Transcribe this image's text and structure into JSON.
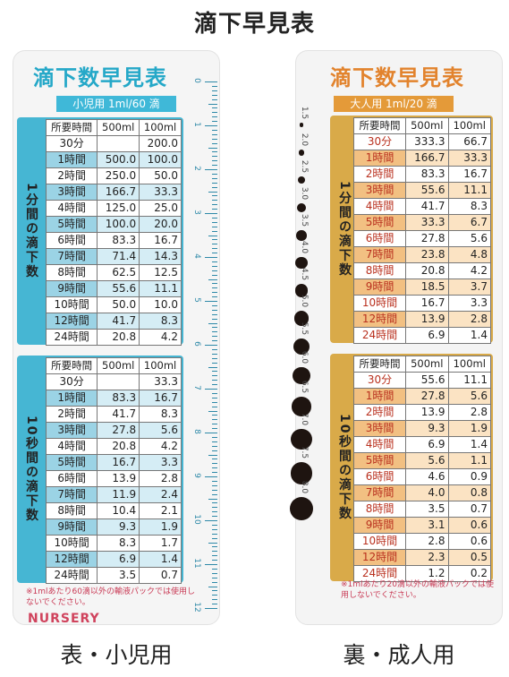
{
  "page_title": "滴下早見表",
  "captions": {
    "front": "表・小児用",
    "back": "裏・成人用"
  },
  "front": {
    "heading": "滴下数早見表",
    "subtitle": "小児用 1ml/60 滴",
    "header": [
      "所要時間",
      "500ml",
      "100ml"
    ],
    "section1_label": "1分間の滴下数",
    "section1_rows": [
      [
        "30分",
        "",
        "200.0"
      ],
      [
        "1時間",
        "500.0",
        "100.0"
      ],
      [
        "2時間",
        "250.0",
        "50.0"
      ],
      [
        "3時間",
        "166.7",
        "33.3"
      ],
      [
        "4時間",
        "125.0",
        "25.0"
      ],
      [
        "5時間",
        "100.0",
        "20.0"
      ],
      [
        "6時間",
        "83.3",
        "16.7"
      ],
      [
        "7時間",
        "71.4",
        "14.3"
      ],
      [
        "8時間",
        "62.5",
        "12.5"
      ],
      [
        "9時間",
        "55.6",
        "11.1"
      ],
      [
        "10時間",
        "50.0",
        "10.0"
      ],
      [
        "12時間",
        "41.7",
        "8.3"
      ],
      [
        "24時間",
        "20.8",
        "4.2"
      ]
    ],
    "section2_label": "10秒間の滴下数",
    "section2_rows": [
      [
        "30分",
        "",
        "33.3"
      ],
      [
        "1時間",
        "83.3",
        "16.7"
      ],
      [
        "2時間",
        "41.7",
        "8.3"
      ],
      [
        "3時間",
        "27.8",
        "5.6"
      ],
      [
        "4時間",
        "20.8",
        "4.2"
      ],
      [
        "5時間",
        "16.7",
        "3.3"
      ],
      [
        "6時間",
        "13.9",
        "2.8"
      ],
      [
        "7時間",
        "11.9",
        "2.4"
      ],
      [
        "8時間",
        "10.4",
        "2.1"
      ],
      [
        "9時間",
        "9.3",
        "1.9"
      ],
      [
        "10時間",
        "8.3",
        "1.7"
      ],
      [
        "12時間",
        "6.9",
        "1.4"
      ],
      [
        "24時間",
        "3.5",
        "0.7"
      ]
    ],
    "note": "※1mlあたり60滴以外の輸液パックでは使用しないでください。",
    "brand": "NURSERY",
    "ruler_numbers": [
      "0",
      "1",
      "2",
      "3",
      "4",
      "5",
      "6",
      "7",
      "8",
      "9",
      "10",
      "11",
      "12"
    ]
  },
  "back": {
    "heading": "滴下数早見表",
    "subtitle": "大人用 1ml/20 滴",
    "header": [
      "所要時間",
      "500ml",
      "100ml"
    ],
    "section1_label": "1分間の滴下数",
    "section1_rows": [
      [
        "30分",
        "333.3",
        "66.7"
      ],
      [
        "1時間",
        "166.7",
        "33.3"
      ],
      [
        "2時間",
        "83.3",
        "16.7"
      ],
      [
        "3時間",
        "55.6",
        "11.1"
      ],
      [
        "4時間",
        "41.7",
        "8.3"
      ],
      [
        "5時間",
        "33.3",
        "6.7"
      ],
      [
        "6時間",
        "27.8",
        "5.6"
      ],
      [
        "7時間",
        "23.8",
        "4.8"
      ],
      [
        "8時間",
        "20.8",
        "4.2"
      ],
      [
        "9時間",
        "18.5",
        "3.7"
      ],
      [
        "10時間",
        "16.7",
        "3.3"
      ],
      [
        "12時間",
        "13.9",
        "2.8"
      ],
      [
        "24時間",
        "6.9",
        "1.4"
      ]
    ],
    "section2_label": "10秒間の滴下数",
    "section2_rows": [
      [
        "30分",
        "55.6",
        "11.1"
      ],
      [
        "1時間",
        "27.8",
        "5.6"
      ],
      [
        "2時間",
        "13.9",
        "2.8"
      ],
      [
        "3時間",
        "9.3",
        "1.9"
      ],
      [
        "4時間",
        "6.9",
        "1.4"
      ],
      [
        "5時間",
        "5.6",
        "1.1"
      ],
      [
        "6時間",
        "4.6",
        "0.9"
      ],
      [
        "7時間",
        "4.0",
        "0.8"
      ],
      [
        "8時間",
        "3.5",
        "0.7"
      ],
      [
        "9時間",
        "3.1",
        "0.6"
      ],
      [
        "10時間",
        "2.8",
        "0.6"
      ],
      [
        "12時間",
        "2.3",
        "0.5"
      ],
      [
        "24時間",
        "1.2",
        "0.2"
      ]
    ],
    "note": "※1mlあたり20滴以外の輸液パックでは使用しないでください。",
    "drop_sizes": [
      "1.5",
      "2.0",
      "2.5",
      "3.0",
      "3.5",
      "4.0",
      "4.5",
      "5.0",
      "5.5",
      "6.0",
      "6.5",
      "7.0",
      "7.5",
      "8.0"
    ]
  },
  "colors": {
    "front_accent": "#46b6d3",
    "back_accent": "#d9aa49",
    "back_time_text": "#b9301e",
    "note_text": "#c93a55"
  }
}
